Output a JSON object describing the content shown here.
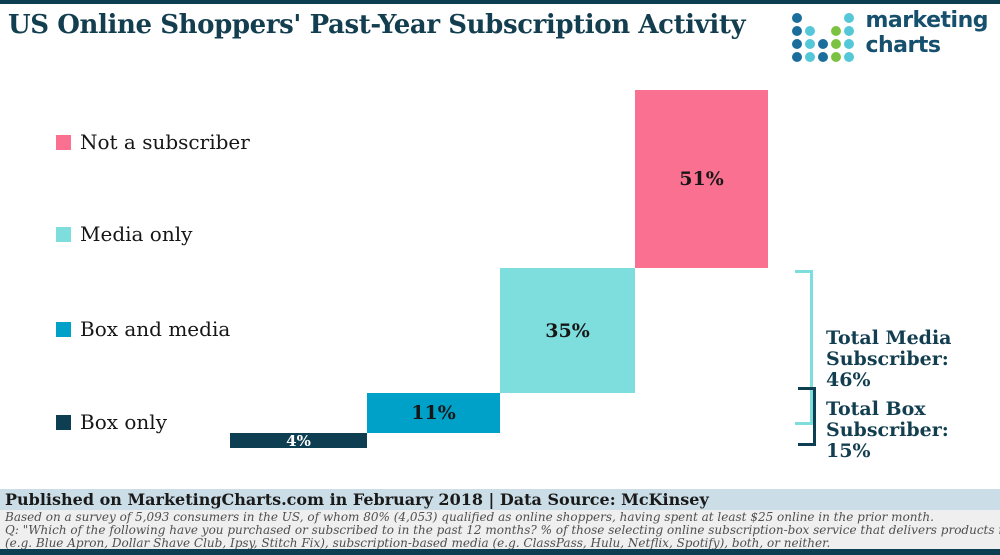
{
  "header": {
    "title": "US Online Shoppers' Past-Year Subscription Activity",
    "logo": {
      "line1": "marketing",
      "line2": "charts",
      "dots": {
        "pattern": [
          "d...t",
          "dt.gt",
          "dtdgt",
          "dtdgt"
        ],
        "colors": {
          "d": "#1B6E9B",
          "t": "#54C7D8",
          "g": "#7CC242"
        }
      }
    }
  },
  "chart_data": {
    "type": "bar",
    "variant": "waterfall-stacked-percentage",
    "title": "US Online Shoppers' Past-Year Subscription Activity",
    "categories": [
      "Box only",
      "Box and media",
      "Media only",
      "Not a subscriber"
    ],
    "values": [
      4,
      11,
      35,
      51
    ],
    "unit": "%",
    "grid": false,
    "legend_position": "left",
    "segments": [
      {
        "label": "Not a subscriber",
        "value": 51,
        "display": "51%",
        "color": "#FA7090",
        "label_color": "#161616"
      },
      {
        "label": "Media only",
        "value": 35,
        "display": "35%",
        "color": "#7EDEDE",
        "label_color": "#161616"
      },
      {
        "label": "Box and media",
        "value": 11,
        "display": "11%",
        "color": "#00A1C9",
        "label_color": "#161616"
      },
      {
        "label": "Box only",
        "value": 4,
        "display": "4%",
        "color": "#0E3E51",
        "label_color": "#FFFFFF"
      }
    ],
    "legend": [
      {
        "label": "Not a subscriber",
        "color": "#FA7090"
      },
      {
        "label": "Media only",
        "color": "#7EDEDE"
      },
      {
        "label": "Box and media",
        "color": "#00A1C9"
      },
      {
        "label": "Box only",
        "color": "#0E3E51"
      }
    ],
    "annotations": [
      {
        "line1": "Total Media",
        "line2": "Subscriber: 46%",
        "value": 46,
        "bracket_color": "#7EDEDE",
        "covers": [
          "Media only",
          "Box and media"
        ]
      },
      {
        "line1": "Total Box",
        "line2": "Subscriber: 15%",
        "value": 15,
        "bracket_color": "#0E3E51",
        "covers": [
          "Box and media",
          "Box only"
        ]
      }
    ]
  },
  "footer": {
    "published_line": "Published on MarketingCharts.com in February 2018 | Data Source: McKinsey",
    "note_line1": "Based on a survey of 5,093 consumers in the US, of whom 80% (4,053) qualified as online shoppers, having spent at least $25 online in the prior month.",
    "note_line2": "Q: \"Which of the following have you purchased or subscribed to in the past 12 months? % of those selecting online subscription-box service that delivers products regularly",
    "note_line3": "(e.g. Blue Apron, Dollar Shave Club, Ipsy, Stitch Fix), subscription-based media (e.g. ClassPass, Hulu, Netflix, Spotify), both, or neither."
  }
}
